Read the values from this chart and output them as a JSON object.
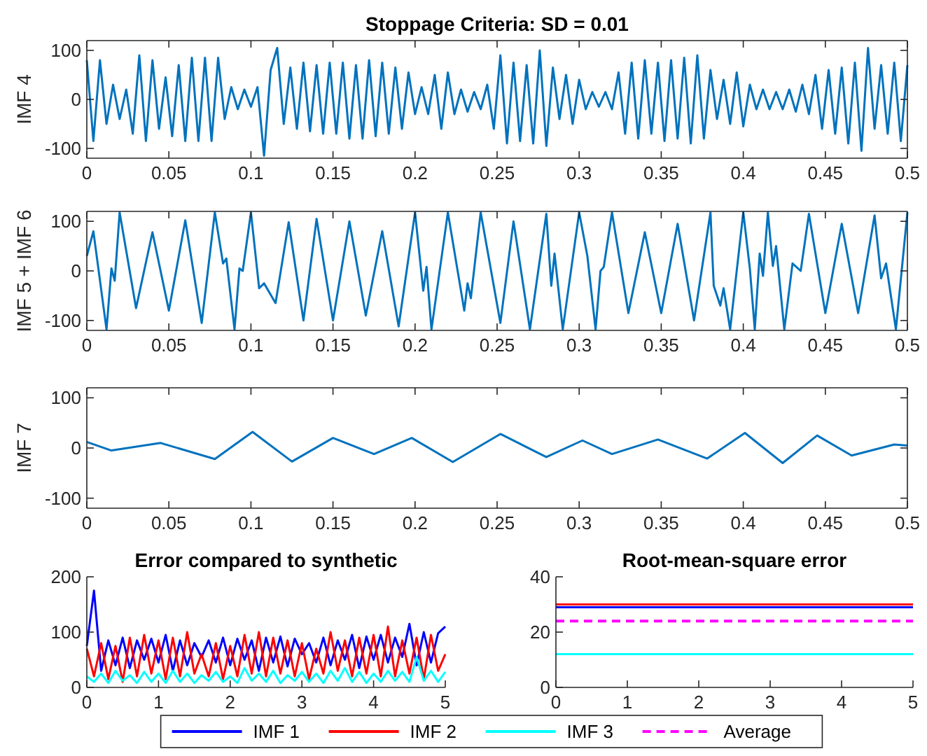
{
  "chart_data": [
    {
      "type": "line",
      "title": "Stoppage Criteria: SD = 0.01",
      "ylabel": "IMF 4",
      "xlim": [
        0,
        0.5
      ],
      "xticks": [
        0,
        0.05,
        0.1,
        0.15,
        0.2,
        0.25,
        0.3,
        0.35,
        0.4,
        0.45,
        0.5
      ],
      "ylim": [
        -120,
        120
      ],
      "yticks": [
        -100,
        0,
        100
      ],
      "x": [
        0,
        0.004,
        0.008,
        0.012,
        0.016,
        0.02,
        0.024,
        0.028,
        0.032,
        0.036,
        0.04,
        0.044,
        0.048,
        0.052,
        0.056,
        0.06,
        0.064,
        0.068,
        0.072,
        0.076,
        0.08,
        0.084,
        0.088,
        0.092,
        0.096,
        0.1,
        0.104,
        0.108,
        0.112,
        0.116,
        0.12,
        0.124,
        0.128,
        0.132,
        0.136,
        0.14,
        0.144,
        0.148,
        0.152,
        0.156,
        0.16,
        0.164,
        0.168,
        0.172,
        0.176,
        0.18,
        0.184,
        0.188,
        0.192,
        0.196,
        0.2,
        0.204,
        0.208,
        0.212,
        0.216,
        0.22,
        0.224,
        0.228,
        0.232,
        0.236,
        0.24,
        0.244,
        0.248,
        0.252,
        0.256,
        0.26,
        0.264,
        0.268,
        0.272,
        0.276,
        0.28,
        0.284,
        0.288,
        0.292,
        0.296,
        0.3,
        0.304,
        0.308,
        0.312,
        0.316,
        0.32,
        0.324,
        0.328,
        0.332,
        0.336,
        0.34,
        0.344,
        0.348,
        0.352,
        0.356,
        0.36,
        0.364,
        0.368,
        0.372,
        0.376,
        0.38,
        0.384,
        0.388,
        0.392,
        0.396,
        0.4,
        0.404,
        0.408,
        0.412,
        0.416,
        0.42,
        0.424,
        0.428,
        0.432,
        0.436,
        0.44,
        0.444,
        0.448,
        0.452,
        0.456,
        0.46,
        0.464,
        0.468,
        0.472,
        0.476,
        0.48,
        0.484,
        0.488,
        0.492,
        0.496,
        0.5
      ],
      "series": [
        {
          "color": "#0072bd",
          "values": [
            80,
            -85,
            80,
            -50,
            30,
            -40,
            20,
            -70,
            90,
            -85,
            80,
            -60,
            45,
            -75,
            70,
            -85,
            85,
            -85,
            85,
            -85,
            85,
            -40,
            25,
            -20,
            20,
            -15,
            25,
            -115,
            60,
            105,
            -50,
            65,
            -60,
            75,
            -65,
            70,
            -70,
            75,
            -70,
            75,
            -80,
            70,
            -80,
            80,
            -75,
            75,
            -70,
            65,
            -60,
            55,
            -30,
            25,
            -30,
            50,
            -60,
            55,
            -30,
            20,
            -25,
            15,
            -20,
            30,
            -60,
            90,
            -90,
            75,
            -85,
            70,
            -90,
            100,
            -95,
            65,
            -40,
            50,
            -50,
            40,
            -20,
            15,
            -15,
            15,
            -20,
            55,
            -70,
            75,
            -80,
            80,
            -70,
            75,
            -85,
            80,
            -80,
            85,
            -90,
            90,
            -80,
            60,
            -40,
            40,
            -50,
            55,
            -55,
            30,
            -20,
            20,
            -20,
            15,
            -20,
            20,
            -25,
            30,
            -30,
            50,
            -60,
            60,
            -70,
            65,
            -90,
            75,
            -105,
            105,
            -60,
            70,
            -70,
            75,
            -85,
            70
          ]
        }
      ]
    },
    {
      "type": "line",
      "ylabel": "IMF 5 + IMF 6",
      "xlim": [
        0,
        0.5
      ],
      "xticks": [
        0,
        0.05,
        0.1,
        0.15,
        0.2,
        0.25,
        0.3,
        0.35,
        0.4,
        0.45,
        0.5
      ],
      "ylim": [
        -120,
        120
      ],
      "yticks": [
        -100,
        0,
        100
      ],
      "x": [
        0,
        0.004,
        0.012,
        0.015,
        0.017,
        0.02,
        0.03,
        0.04,
        0.05,
        0.06,
        0.07,
        0.078,
        0.083,
        0.085,
        0.09,
        0.093,
        0.095,
        0.1,
        0.105,
        0.108,
        0.115,
        0.123,
        0.132,
        0.14,
        0.15,
        0.16,
        0.17,
        0.18,
        0.19,
        0.2,
        0.205,
        0.207,
        0.21,
        0.22,
        0.23,
        0.232,
        0.234,
        0.24,
        0.252,
        0.26,
        0.27,
        0.28,
        0.283,
        0.285,
        0.29,
        0.3,
        0.305,
        0.31,
        0.313,
        0.315,
        0.32,
        0.33,
        0.34,
        0.35,
        0.36,
        0.37,
        0.38,
        0.382,
        0.386,
        0.388,
        0.392,
        0.4,
        0.404,
        0.407,
        0.41,
        0.412,
        0.415,
        0.418,
        0.42,
        0.425,
        0.43,
        0.435,
        0.44,
        0.45,
        0.46,
        0.47,
        0.48,
        0.484,
        0.487,
        0.493,
        0.5
      ],
      "series": [
        {
          "color": "#0072bd",
          "values": [
            30,
            80,
            -118,
            5,
            -20,
            118,
            -75,
            78,
            -80,
            102,
            -105,
            118,
            15,
            25,
            -118,
            5,
            0,
            118,
            -35,
            -25,
            -65,
            98,
            -100,
            105,
            -100,
            100,
            -90,
            80,
            -112,
            118,
            -40,
            8,
            -118,
            118,
            -80,
            -25,
            -55,
            118,
            -105,
            100,
            -118,
            115,
            -30,
            35,
            -118,
            118,
            30,
            -118,
            0,
            8,
            118,
            -85,
            78,
            -85,
            95,
            -100,
            118,
            -30,
            -70,
            -35,
            -118,
            118,
            5,
            -118,
            35,
            -10,
            118,
            10,
            50,
            -118,
            15,
            0,
            115,
            -85,
            95,
            -85,
            112,
            -15,
            15,
            -118,
            118
          ]
        }
      ]
    },
    {
      "type": "line",
      "ylabel": "IMF 7",
      "xlim": [
        0,
        0.5
      ],
      "xticks": [
        0,
        0.05,
        0.1,
        0.15,
        0.2,
        0.25,
        0.3,
        0.35,
        0.4,
        0.45,
        0.5
      ],
      "ylim": [
        -120,
        120
      ],
      "yticks": [
        -100,
        0,
        100
      ],
      "x": [
        0,
        0.015,
        0.045,
        0.078,
        0.101,
        0.125,
        0.15,
        0.175,
        0.198,
        0.223,
        0.252,
        0.28,
        0.302,
        0.32,
        0.348,
        0.378,
        0.401,
        0.424,
        0.445,
        0.466,
        0.492,
        0.5
      ],
      "series": [
        {
          "color": "#0072bd",
          "values": [
            12,
            -5,
            10,
            -22,
            32,
            -27,
            20,
            -12,
            20,
            -28,
            28,
            -18,
            15,
            -12,
            17,
            -21,
            30,
            -30,
            25,
            -15,
            7,
            5
          ]
        }
      ]
    },
    {
      "type": "line",
      "title": "Error compared to synthetic",
      "xlim": [
        0,
        5
      ],
      "xticks": [
        0,
        1,
        2,
        3,
        4,
        5
      ],
      "ylim": [
        0,
        200
      ],
      "yticks": [
        0,
        100,
        200
      ],
      "x": [
        0,
        0.1,
        0.2,
        0.3,
        0.4,
        0.5,
        0.6,
        0.7,
        0.8,
        0.9,
        1,
        1.1,
        1.2,
        1.3,
        1.4,
        1.5,
        1.6,
        1.7,
        1.8,
        1.9,
        2,
        2.1,
        2.2,
        2.3,
        2.4,
        2.5,
        2.6,
        2.7,
        2.8,
        2.9,
        3,
        3.1,
        3.2,
        3.3,
        3.4,
        3.5,
        3.6,
        3.7,
        3.8,
        3.9,
        4,
        4.1,
        4.2,
        4.3,
        4.4,
        4.5,
        4.6,
        4.7,
        4.8,
        4.9,
        5
      ],
      "series": [
        {
          "color": "#0000ff",
          "values": [
            75,
            175,
            30,
            85,
            40,
            90,
            35,
            85,
            50,
            88,
            45,
            95,
            30,
            85,
            40,
            80,
            55,
            85,
            45,
            90,
            40,
            88,
            50,
            85,
            30,
            90,
            45,
            92,
            38,
            88,
            60,
            80,
            45,
            90,
            40,
            85,
            50,
            95,
            35,
            92,
            50,
            95,
            45,
            90,
            55,
            115,
            40,
            100,
            45,
            98,
            110
          ]
        },
        {
          "color": "#ff0000",
          "values": [
            70,
            20,
            80,
            15,
            75,
            10,
            90,
            20,
            95,
            25,
            85,
            15,
            90,
            20,
            100,
            25,
            60,
            20,
            80,
            15,
            75,
            20,
            95,
            25,
            100,
            20,
            90,
            25,
            85,
            20,
            80,
            15,
            70,
            25,
            100,
            30,
            85,
            20,
            90,
            25,
            95,
            20,
            110,
            20,
            85,
            25,
            90,
            15,
            95,
            30,
            60
          ]
        },
        {
          "color": "#00ffff",
          "values": [
            20,
            10,
            25,
            8,
            30,
            12,
            22,
            8,
            28,
            10,
            25,
            8,
            30,
            10,
            25,
            8,
            22,
            12,
            28,
            10,
            20,
            8,
            35,
            12,
            25,
            10,
            30,
            8,
            22,
            12,
            28,
            10,
            25,
            8,
            30,
            12,
            35,
            10,
            28,
            8,
            25,
            10,
            30,
            12,
            28,
            10,
            55,
            12,
            30,
            10,
            28
          ]
        }
      ]
    },
    {
      "type": "line",
      "title": "Root-mean-square error",
      "xlim": [
        0,
        5
      ],
      "xticks": [
        0,
        1,
        2,
        3,
        4,
        5
      ],
      "ylim": [
        0,
        40
      ],
      "yticks": [
        0,
        20,
        40
      ],
      "legend": "bottom",
      "x": [
        0,
        5
      ],
      "series": [
        {
          "name": "IMF 1",
          "color": "#0000ff",
          "values": [
            29,
            29
          ]
        },
        {
          "name": "IMF 2",
          "color": "#ff0000",
          "values": [
            30,
            30
          ]
        },
        {
          "name": "IMF 3",
          "color": "#00ffff",
          "values": [
            12,
            12
          ]
        },
        {
          "name": "Average",
          "color": "#ff00ff",
          "line_style": "dashed",
          "values": [
            24,
            24
          ]
        }
      ]
    }
  ]
}
